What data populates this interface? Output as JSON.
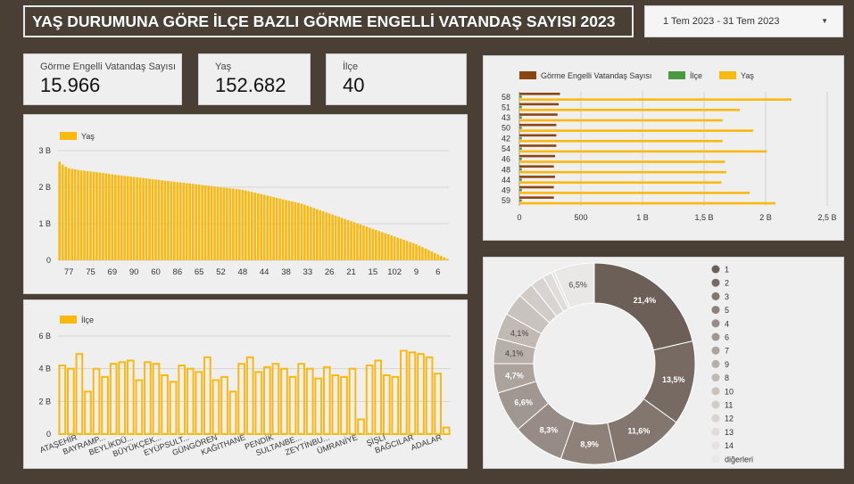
{
  "header": {
    "title": "YAŞ DURUMUNA GÖRE İLÇE BAZLI GÖRME ENGELLİ VATANDAŞ SAYISI 2023",
    "date_range": "1 Tem 2023 - 31 Tem 2023",
    "date_caret": "▼"
  },
  "kpis": [
    {
      "label": "Görme Engelli Vatandaş Sayısı",
      "value": "15.966"
    },
    {
      "label": "Yaş",
      "value": "152.682"
    },
    {
      "label": "İlçe",
      "value": "40"
    }
  ],
  "colors": {
    "yas": "#fbb80f",
    "ilce": "#4a9a3f",
    "gorme": "#8b4513",
    "background": "#4a3f35"
  },
  "chart_data": [
    {
      "id": "yas_chart",
      "type": "bar",
      "legend": "Yaş",
      "yticks": [
        "0",
        "1 B",
        "2 B",
        "3 B"
      ],
      "ylim": [
        0,
        3000
      ],
      "xtick_labels": [
        "77",
        "75",
        "69",
        "90",
        "60",
        "86",
        "65",
        "52",
        "48",
        "44",
        "38",
        "33",
        "26",
        "21",
        "15",
        "102",
        "9",
        "6"
      ],
      "values": [
        2700,
        2620,
        2560,
        2520,
        2500,
        2490,
        2470,
        2460,
        2450,
        2440,
        2430,
        2420,
        2410,
        2400,
        2390,
        2380,
        2360,
        2350,
        2340,
        2330,
        2320,
        2310,
        2300,
        2290,
        2280,
        2270,
        2260,
        2250,
        2240,
        2230,
        2220,
        2210,
        2200,
        2190,
        2180,
        2170,
        2160,
        2150,
        2140,
        2130,
        2120,
        2110,
        2100,
        2090,
        2080,
        2070,
        2060,
        2050,
        2040,
        2030,
        2020,
        2010,
        2000,
        1990,
        1980,
        1970,
        1960,
        1950,
        1940,
        1930,
        1910,
        1890,
        1870,
        1850,
        1830,
        1810,
        1790,
        1770,
        1750,
        1730,
        1710,
        1690,
        1670,
        1650,
        1630,
        1610,
        1590,
        1570,
        1550,
        1520,
        1490,
        1460,
        1430,
        1400,
        1370,
        1340,
        1310,
        1280,
        1250,
        1220,
        1190,
        1160,
        1130,
        1100,
        1070,
        1040,
        1010,
        980,
        950,
        920,
        890,
        860,
        830,
        800,
        770,
        740,
        710,
        680,
        650,
        620,
        590,
        560,
        530,
        500,
        470,
        440,
        400,
        360,
        320,
        280,
        240,
        200,
        160,
        120,
        80,
        40
      ]
    },
    {
      "id": "ilce_chart",
      "type": "bar",
      "legend": "İlçe",
      "yticks": [
        "0",
        "2 B",
        "4 B",
        "6 B"
      ],
      "ylim": [
        0,
        6000
      ],
      "xtick_labels": [
        "ATAŞEHİR",
        "BAYRAMP...",
        "BEYLİKDÜ...",
        "BÜYÜKÇEK...",
        "EYÜPSULT...",
        "GÜNGÖREN",
        "KAĞITHANE",
        "PENDİK",
        "SULTANBE...",
        "ZEYTİNBU...",
        "ÜMRANİYE",
        "ŞİŞLİ",
        "BAĞCILAR",
        "ADALAR"
      ],
      "values": [
        4200,
        4000,
        4900,
        2600,
        4000,
        3500,
        4300,
        4400,
        4500,
        3300,
        4400,
        4300,
        3600,
        3200,
        4200,
        4000,
        3800,
        4700,
        3300,
        3500,
        2600,
        4300,
        4700,
        3800,
        4100,
        4300,
        4000,
        3500,
        4300,
        4000,
        3400,
        4100,
        3600,
        3500,
        4000,
        900,
        4200,
        4500,
        3600,
        3500,
        5100,
        5000,
        4900,
        4700,
        3700,
        400
      ]
    },
    {
      "id": "combo_chart",
      "type": "bar",
      "orientation": "horizontal",
      "legend": [
        "Görme Engelli Vatandaş Sayısı",
        "İlçe",
        "Yaş"
      ],
      "categories": [
        "58",
        "51",
        "43",
        "50",
        "42",
        "54",
        "46",
        "48",
        "44",
        "49",
        "59"
      ],
      "xticks": [
        "0",
        "500",
        "1 B",
        "1,5 B",
        "2 B",
        "2,5 B"
      ],
      "xlim": [
        0,
        2500
      ],
      "series": [
        {
          "name": "Görme Engelli Vatandaş Sayısı",
          "values": [
            330,
            320,
            310,
            300,
            300,
            300,
            290,
            280,
            290,
            280,
            280
          ]
        },
        {
          "name": "İlçe",
          "values": [
            20,
            20,
            20,
            20,
            20,
            20,
            20,
            20,
            20,
            20,
            20
          ]
        },
        {
          "name": "Yaş",
          "values": [
            2210,
            1790,
            1650,
            1900,
            1650,
            2010,
            1670,
            1680,
            1640,
            1870,
            2080
          ]
        }
      ]
    },
    {
      "id": "pie_chart",
      "type": "pie",
      "labels": [
        "21,4%",
        "13,5%",
        "11,6%",
        "8,9%",
        "8,3%",
        "6,6%",
        "4,7%",
        "4,1%",
        "4,1%",
        "",
        "",
        "",
        "",
        "",
        "6,5%"
      ],
      "legend": [
        "1",
        "2",
        "3",
        "5",
        "4",
        "6",
        "7",
        "9",
        "8",
        "10",
        "11",
        "12",
        "13",
        "14",
        "diğerleri"
      ],
      "values": [
        21.4,
        13.5,
        11.6,
        8.9,
        8.3,
        6.6,
        4.7,
        4.1,
        4.1,
        3.6,
        2.5,
        2.2,
        1.5,
        0.5,
        6.5
      ],
      "colors": [
        "#6b5f58",
        "#766a63",
        "#82766f",
        "#8d8179",
        "#978c85",
        "#a19791",
        "#aca39d",
        "#b7afaa",
        "#c0b9b4",
        "#c9c3bf",
        "#d1ccc8",
        "#d8d4d1",
        "#dfdcd9",
        "#e5e3e1",
        "#e9e8e6"
      ]
    }
  ]
}
